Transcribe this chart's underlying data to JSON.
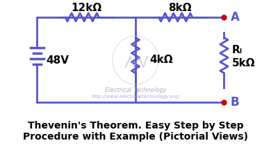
{
  "background_color": "#ffffff",
  "circuit_color": "#5555cc",
  "dot_color": "#cc0000",
  "text_color": "#000000",
  "watermark_color": "#aaaacc",
  "title": "Thevenin's Theorem. Easy Step by Step\nProcedure with Example (Pictorial Views)",
  "title_fontsize": 10,
  "watermark_line1": "Electrical Technology",
  "watermark_line2": "http://www.electricaltechnology.org/",
  "label_12k": "12kΩ",
  "label_8k": "8kΩ",
  "label_4k": "4kΩ",
  "label_48v": "48V",
  "label_RL": "Rₗ",
  "label_5k": "5kΩ",
  "label_A": "A",
  "label_B": "B"
}
